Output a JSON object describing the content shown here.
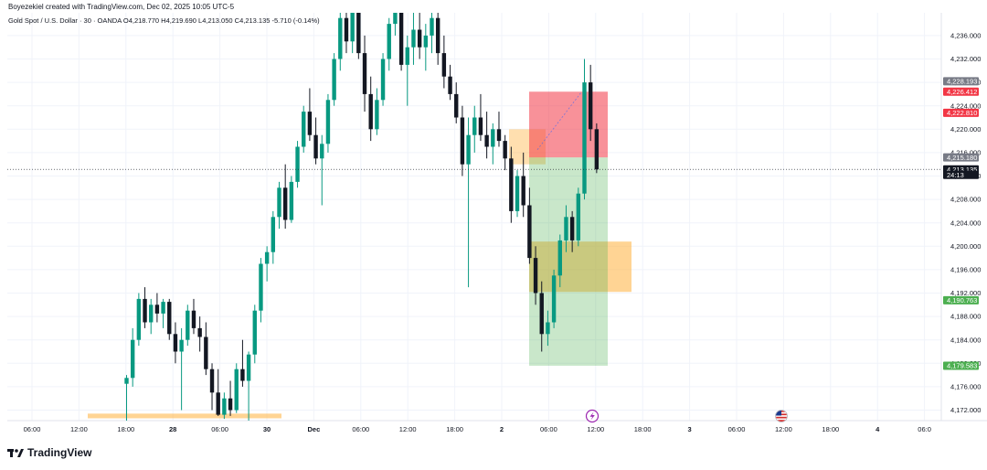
{
  "header": {
    "author_line": "Boyezekiel created with TradingView.com, Dec 02, 2025 10:05 UTC-5",
    "symbol_line": "Gold Spot / U.S. Dollar · 30 · OANDA  O4,218.770  H4,219.690  L4,213.050  C4,213.135  -5.710 (-0.14%)"
  },
  "footer": {
    "brand": "TradingView"
  },
  "colors": {
    "up": "#089981",
    "down": "#131722",
    "stop_zone": "#f23645",
    "target_zone": "#4caf50",
    "demand_zone": "#ffb74d"
  },
  "chart_data": {
    "type": "candlestick",
    "symbol": "Gold Spot / U.S. Dollar",
    "interval": "30",
    "exchange": "OANDA",
    "ylim": [
      4170,
      4240
    ],
    "y_ticks": [
      "4,172.000",
      "4,176.000",
      "4,180.000",
      "4,184.000",
      "4,188.000",
      "4,192.000",
      "4,196.000",
      "4,200.000",
      "4,204.000",
      "4,208.000",
      "4,212.000",
      "4,216.000",
      "4,220.000",
      "4,224.000",
      "4,228.000",
      "4,232.000",
      "4,236.000"
    ],
    "x_ticks": [
      "06:00",
      "12:00",
      "18:00",
      "28",
      "06:00",
      "30",
      "Dec",
      "06:00",
      "12:00",
      "18:00",
      "2",
      "06:00",
      "12:00",
      "18:00",
      "3",
      "06:00",
      "12:00",
      "18:00",
      "4",
      "06:0"
    ],
    "price_tags": [
      {
        "label": "4,228.193",
        "value": 4228.193,
        "color": "#787b86"
      },
      {
        "label": "4,226.412",
        "value": 4226.412,
        "color": "#f23645"
      },
      {
        "label": "4,222.810",
        "value": 4222.81,
        "color": "#f23645"
      },
      {
        "label": "4,215.180",
        "value": 4215.18,
        "color": "#787b86"
      },
      {
        "label": "4,213.135",
        "value": 4213.135,
        "color": "#131722"
      },
      {
        "label": "24:13",
        "value": 4212.2,
        "color": "#131722"
      },
      {
        "label": "4,190.763",
        "value": 4190.763,
        "color": "#4caf50"
      },
      {
        "label": "4,179.583",
        "value": 4179.583,
        "color": "#4caf50"
      }
    ],
    "current_price": 4213.135,
    "position": {
      "entry": 4215.18,
      "stop": 4226.412,
      "target": 4179.583
    },
    "zones": [
      {
        "name": "lower-demand-zone",
        "top": 4171.4,
        "bottom": 4170.6
      },
      {
        "name": "mid-demand-zone",
        "top": 4200.8,
        "bottom": 4192.2
      },
      {
        "name": "small-supply-zone",
        "top": 4220.0,
        "bottom": 4214.0
      }
    ],
    "candles": [
      {
        "o": 4176.5,
        "h": 4178,
        "l": 4170,
        "c": 4177.5
      },
      {
        "o": 4177.5,
        "h": 4186,
        "l": 4176,
        "c": 4184
      },
      {
        "o": 4184,
        "h": 4192,
        "l": 4183,
        "c": 4191
      },
      {
        "o": 4191,
        "h": 4193,
        "l": 4186,
        "c": 4187
      },
      {
        "o": 4187,
        "h": 4191,
        "l": 4185,
        "c": 4190
      },
      {
        "o": 4190,
        "h": 4192,
        "l": 4187,
        "c": 4188.5
      },
      {
        "o": 4188.5,
        "h": 4191,
        "l": 4186,
        "c": 4190.5
      },
      {
        "o": 4190.5,
        "h": 4191,
        "l": 4184,
        "c": 4185
      },
      {
        "o": 4185,
        "h": 4187,
        "l": 4180,
        "c": 4182
      },
      {
        "o": 4182,
        "h": 4186,
        "l": 4172,
        "c": 4184
      },
      {
        "o": 4184,
        "h": 4190,
        "l": 4183,
        "c": 4189
      },
      {
        "o": 4189,
        "h": 4191,
        "l": 4185,
        "c": 4186
      },
      {
        "o": 4186,
        "h": 4188,
        "l": 4182,
        "c": 4184.5
      },
      {
        "o": 4184.5,
        "h": 4187,
        "l": 4178,
        "c": 4179
      },
      {
        "o": 4179,
        "h": 4180,
        "l": 4172,
        "c": 4175
      },
      {
        "o": 4175,
        "h": 4179,
        "l": 4171,
        "c": 4171.2
      },
      {
        "o": 4171.2,
        "h": 4175,
        "l": 4170.5,
        "c": 4174
      },
      {
        "o": 4174,
        "h": 4177,
        "l": 4171,
        "c": 4172
      },
      {
        "o": 4172,
        "h": 4180,
        "l": 4171.5,
        "c": 4179
      },
      {
        "o": 4179,
        "h": 4184,
        "l": 4176,
        "c": 4177
      },
      {
        "o": 4177,
        "h": 4182,
        "l": 4170,
        "c": 4181.5
      },
      {
        "o": 4181.5,
        "h": 4190,
        "l": 4180,
        "c": 4189
      },
      {
        "o": 4189,
        "h": 4198,
        "l": 4187,
        "c": 4197
      },
      {
        "o": 4197,
        "h": 4200,
        "l": 4194,
        "c": 4199
      },
      {
        "o": 4199,
        "h": 4206,
        "l": 4197,
        "c": 4205
      },
      {
        "o": 4205,
        "h": 4211,
        "l": 4203,
        "c": 4210
      },
      {
        "o": 4210,
        "h": 4214,
        "l": 4203,
        "c": 4204.5
      },
      {
        "o": 4204.5,
        "h": 4212,
        "l": 4204,
        "c": 4211
      },
      {
        "o": 4211,
        "h": 4218,
        "l": 4210,
        "c": 4217
      },
      {
        "o": 4217,
        "h": 4224,
        "l": 4216,
        "c": 4223
      },
      {
        "o": 4223,
        "h": 4227,
        "l": 4218,
        "c": 4219
      },
      {
        "o": 4219,
        "h": 4222,
        "l": 4214,
        "c": 4215
      },
      {
        "o": 4215,
        "h": 4219,
        "l": 4207,
        "c": 4217.5
      },
      {
        "o": 4217.5,
        "h": 4226,
        "l": 4216,
        "c": 4225
      },
      {
        "o": 4225,
        "h": 4233,
        "l": 4224,
        "c": 4232
      },
      {
        "o": 4232,
        "h": 4240,
        "l": 4230,
        "c": 4239
      },
      {
        "o": 4239,
        "h": 4241,
        "l": 4233,
        "c": 4235
      },
      {
        "o": 4235,
        "h": 4241,
        "l": 4233,
        "c": 4240
      },
      {
        "o": 4240,
        "h": 4241,
        "l": 4232,
        "c": 4233
      },
      {
        "o": 4233,
        "h": 4236,
        "l": 4223,
        "c": 4226
      },
      {
        "o": 4226,
        "h": 4229,
        "l": 4218,
        "c": 4220
      },
      {
        "o": 4220,
        "h": 4227,
        "l": 4219,
        "c": 4225
      },
      {
        "o": 4225,
        "h": 4233,
        "l": 4224,
        "c": 4232
      },
      {
        "o": 4232,
        "h": 4239,
        "l": 4230,
        "c": 4238
      },
      {
        "o": 4238,
        "h": 4241,
        "l": 4236,
        "c": 4240
      },
      {
        "o": 4240,
        "h": 4241,
        "l": 4230,
        "c": 4231
      },
      {
        "o": 4231,
        "h": 4236,
        "l": 4224,
        "c": 4234
      },
      {
        "o": 4234,
        "h": 4241,
        "l": 4231,
        "c": 4237
      },
      {
        "o": 4237,
        "h": 4240,
        "l": 4232,
        "c": 4234
      },
      {
        "o": 4234,
        "h": 4238,
        "l": 4230,
        "c": 4236
      },
      {
        "o": 4236,
        "h": 4241,
        "l": 4233,
        "c": 4239
      },
      {
        "o": 4239,
        "h": 4240,
        "l": 4231,
        "c": 4233
      },
      {
        "o": 4233,
        "h": 4236,
        "l": 4227,
        "c": 4229
      },
      {
        "o": 4229,
        "h": 4231,
        "l": 4225,
        "c": 4226
      },
      {
        "o": 4226,
        "h": 4228,
        "l": 4221,
        "c": 4222
      },
      {
        "o": 4222,
        "h": 4224,
        "l": 4212,
        "c": 4214
      },
      {
        "o": 4214,
        "h": 4222,
        "l": 4193,
        "c": 4219
      },
      {
        "o": 4219,
        "h": 4224,
        "l": 4216,
        "c": 4222
      },
      {
        "o": 4222,
        "h": 4226,
        "l": 4218,
        "c": 4219
      },
      {
        "o": 4219,
        "h": 4223,
        "l": 4215,
        "c": 4217
      },
      {
        "o": 4217,
        "h": 4221,
        "l": 4214,
        "c": 4220
      },
      {
        "o": 4220,
        "h": 4223,
        "l": 4217,
        "c": 4218
      },
      {
        "o": 4218,
        "h": 4219,
        "l": 4213,
        "c": 4215
      },
      {
        "o": 4215,
        "h": 4217,
        "l": 4204,
        "c": 4206
      },
      {
        "o": 4206,
        "h": 4213,
        "l": 4205,
        "c": 4212
      },
      {
        "o": 4212,
        "h": 4216,
        "l": 4205,
        "c": 4207
      },
      {
        "o": 4207,
        "h": 4210,
        "l": 4197,
        "c": 4198
      },
      {
        "o": 4198,
        "h": 4200,
        "l": 4190,
        "c": 4192
      },
      {
        "o": 4192,
        "h": 4194,
        "l": 4182,
        "c": 4185
      },
      {
        "o": 4185,
        "h": 4189,
        "l": 4183,
        "c": 4187
      },
      {
        "o": 4187,
        "h": 4196,
        "l": 4186,
        "c": 4195
      },
      {
        "o": 4195,
        "h": 4202,
        "l": 4193,
        "c": 4201
      },
      {
        "o": 4201,
        "h": 4207,
        "l": 4199,
        "c": 4205
      },
      {
        "o": 4205,
        "h": 4206,
        "l": 4199,
        "c": 4201
      },
      {
        "o": 4201,
        "h": 4210,
        "l": 4200,
        "c": 4209
      },
      {
        "o": 4209,
        "h": 4232,
        "l": 4208,
        "c": 4228
      },
      {
        "o": 4228,
        "h": 4231,
        "l": 4218,
        "c": 4220
      },
      {
        "o": 4220,
        "h": 4221,
        "l": 4212.5,
        "c": 4213.135
      }
    ]
  }
}
